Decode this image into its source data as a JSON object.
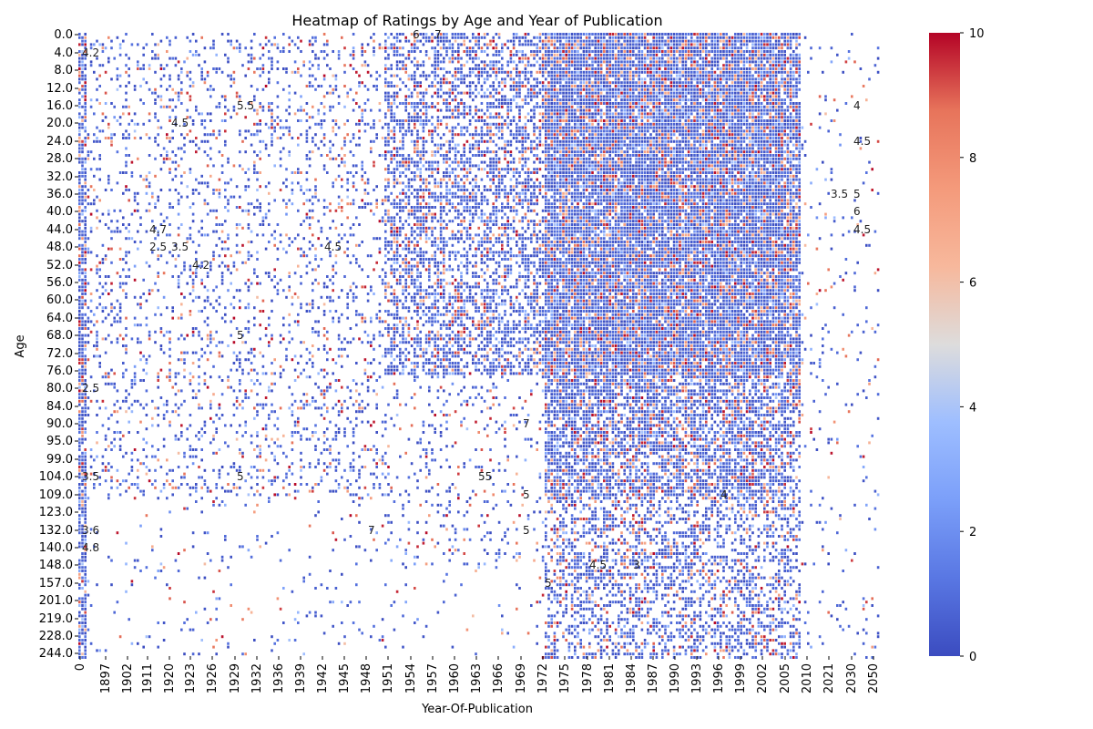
{
  "chart_data": {
    "type": "heatmap",
    "title": "Heatmap of Ratings by Age and Year of Publication",
    "xlabel": "Year-Of-Publication",
    "ylabel": "Age",
    "x_tick_labels": [
      "0",
      "1897",
      "1902",
      "1911",
      "1920",
      "1923",
      "1926",
      "1929",
      "1932",
      "1936",
      "1939",
      "1942",
      "1945",
      "1948",
      "1951",
      "1954",
      "1957",
      "1960",
      "1963",
      "1966",
      "1969",
      "1972",
      "1975",
      "1978",
      "1981",
      "1984",
      "1987",
      "1990",
      "1993",
      "1996",
      "1999",
      "2002",
      "2005",
      "2010",
      "2021",
      "2030",
      "2050"
    ],
    "y_tick_labels": [
      "0.0",
      "4.0",
      "8.0",
      "12.0",
      "16.0",
      "20.0",
      "24.0",
      "28.0",
      "32.0",
      "36.0",
      "40.0",
      "44.0",
      "48.0",
      "52.0",
      "56.0",
      "60.0",
      "64.0",
      "68.0",
      "72.0",
      "76.0",
      "80.0",
      "84.0",
      "90.0",
      "95.0",
      "99.0",
      "104.0",
      "109.0",
      "123.0",
      "132.0",
      "140.0",
      "148.0",
      "157.0",
      "201.0",
      "219.0",
      "228.0",
      "244.0"
    ],
    "colorbar": {
      "min": 0,
      "max": 10,
      "ticks": [
        "0",
        "2",
        "4",
        "6",
        "8",
        "10"
      ]
    },
    "colormap": "coolwarm",
    "annotations": [
      {
        "x": "0",
        "y": "4.0",
        "value": "4.2"
      },
      {
        "x": "1920",
        "y": "20.0",
        "value": "4.5"
      },
      {
        "x": "1929",
        "y": "16.0",
        "value": "5.5"
      },
      {
        "x": "1911",
        "y": "44.0",
        "value": "4.7"
      },
      {
        "x": "1911",
        "y": "48.0",
        "value": "2.5"
      },
      {
        "x": "1920",
        "y": "48.0",
        "value": "3.5"
      },
      {
        "x": "1923",
        "y": "52.0",
        "value": "4.2"
      },
      {
        "x": "1942",
        "y": "48.0",
        "value": "4.5"
      },
      {
        "x": "1954",
        "y": "0.0",
        "value": "6"
      },
      {
        "x": "1957",
        "y": "0.0",
        "value": "7"
      },
      {
        "x": "2030",
        "y": "16.0",
        "value": "4"
      },
      {
        "x": "2030",
        "y": "24.0",
        "value": "4.5"
      },
      {
        "x": "2021",
        "y": "36.0",
        "value": "3.5"
      },
      {
        "x": "2030",
        "y": "36.0",
        "value": "5"
      },
      {
        "x": "2030",
        "y": "44.0",
        "value": "4.5"
      },
      {
        "x": "2030",
        "y": "40.0",
        "value": "6"
      },
      {
        "x": "1929",
        "y": "68.0",
        "value": "5"
      },
      {
        "x": "1929",
        "y": "104.0",
        "value": "5"
      },
      {
        "x": "1948",
        "y": "132.0",
        "value": "7"
      },
      {
        "x": "1969",
        "y": "132.0",
        "value": "5"
      },
      {
        "x": "1972",
        "y": "157.0",
        "value": "5"
      },
      {
        "x": "1978",
        "y": "148.0",
        "value": "4.5"
      },
      {
        "x": "1984",
        "y": "148.0",
        "value": "3"
      },
      {
        "x": "1996",
        "y": "109.0",
        "value": "4"
      },
      {
        "x": "1969",
        "y": "90.0",
        "value": "7"
      },
      {
        "x": "1963",
        "y": "104.0",
        "value": "55"
      },
      {
        "x": "1969",
        "y": "109.0",
        "value": "5"
      },
      {
        "x": "0",
        "y": "132.0",
        "value": "3.6"
      },
      {
        "x": "0",
        "y": "140.0",
        "value": "4.8"
      },
      {
        "x": "0",
        "y": "104.0",
        "value": "3.5"
      },
      {
        "x": "0",
        "y": "80.0",
        "value": "2.5"
      }
    ]
  }
}
